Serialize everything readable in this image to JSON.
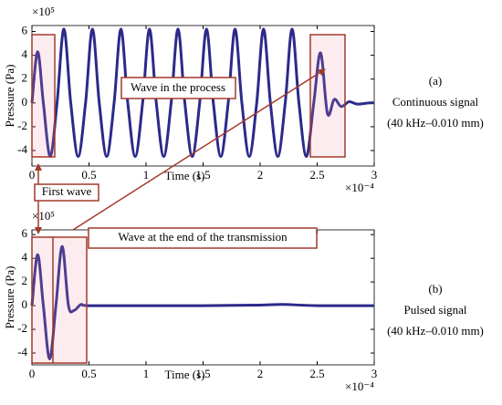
{
  "chart_data": [
    {
      "type": "line",
      "panel_label": "(a)",
      "caption": [
        "Continuous signal",
        "(40 kHz–0.010 mm)"
      ],
      "x_label": "Time  (s)",
      "y_label": "Pressure (Pa)",
      "x_exponent": "×10⁻⁴",
      "y_exponent": "×10⁵",
      "annotations": [
        "Wave in the process",
        "First wave"
      ],
      "xlim": [
        0,
        3
      ],
      "ylim": [
        -5.3,
        6.5
      ],
      "xticks": [
        0,
        0.5,
        1,
        1.5,
        2,
        2.5,
        3
      ],
      "yticks": [
        -4,
        -2,
        0,
        2,
        4,
        6
      ],
      "series": [
        {
          "color": "#2b2a8a",
          "x": [
            0,
            0.05,
            0.1,
            0.16,
            0.22,
            0.28,
            0.34,
            0.405,
            0.47,
            0.53,
            0.59,
            0.655,
            0.72,
            0.78,
            0.84,
            0.905,
            0.97,
            1.03,
            1.09,
            1.155,
            1.22,
            1.28,
            1.34,
            1.405,
            1.47,
            1.53,
            1.59,
            1.655,
            1.72,
            1.78,
            1.84,
            1.905,
            1.97,
            2.03,
            2.09,
            2.155,
            2.22,
            2.28,
            2.34,
            2.405,
            2.47,
            2.53,
            2.59,
            2.65,
            2.71,
            2.78,
            2.85,
            2.95,
            3
          ],
          "values": [
            0,
            4.3,
            0,
            -4.5,
            0,
            6.2,
            0,
            -4.5,
            0,
            6.2,
            0,
            -4.5,
            0,
            6.2,
            0,
            -4.5,
            0,
            6.2,
            0,
            -4.5,
            0,
            6.2,
            0,
            -4.5,
            0,
            6.2,
            0,
            -4.5,
            0,
            6.2,
            0,
            -4.5,
            0,
            6.2,
            0,
            -4.5,
            0,
            6.2,
            0,
            -4.5,
            0,
            4.2,
            -0.9,
            0.3,
            -0.3,
            0.1,
            -0.1,
            0,
            0
          ]
        }
      ]
    },
    {
      "type": "line",
      "panel_label": "(b)",
      "caption": [
        "Pulsed signal",
        "(40 kHz–0.010 mm)"
      ],
      "x_label": "Time  (s)",
      "y_label": "Pressure (Pa)",
      "x_exponent": "×10⁻⁴",
      "y_exponent": "×10⁵",
      "annotations": [
        "Wave at the end of the transmission"
      ],
      "xlim": [
        0,
        3
      ],
      "ylim": [
        -5,
        6.4
      ],
      "xticks": [
        0,
        0.5,
        1,
        1.5,
        2,
        2.5,
        3
      ],
      "yticks": [
        -4,
        -2,
        0,
        2,
        4,
        6
      ],
      "series": [
        {
          "color": "#2b2a8a",
          "x": [
            0,
            0.05,
            0.1,
            0.155,
            0.21,
            0.265,
            0.32,
            0.37,
            0.43,
            0.5,
            1,
            1.5,
            2,
            2.2,
            2.5,
            3
          ],
          "values": [
            0,
            4.3,
            0,
            -4.5,
            0,
            5.0,
            0,
            -0.4,
            0.1,
            0,
            0,
            0,
            0.05,
            0.1,
            0,
            0
          ]
        }
      ]
    }
  ]
}
